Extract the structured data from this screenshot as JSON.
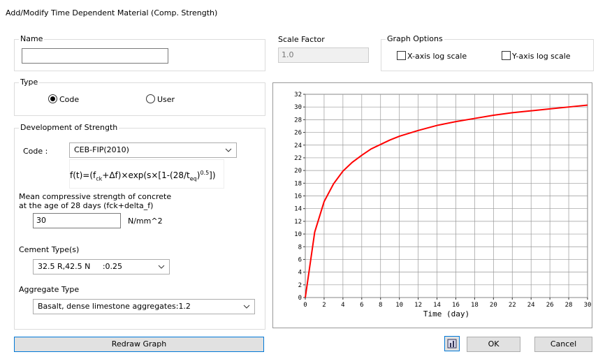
{
  "window": {
    "title": "Add/Modify Time Dependent Material (Comp. Strength)"
  },
  "name_group": {
    "label": "Name"
  },
  "scale_factor": {
    "label": "Scale Factor",
    "value": "1.0"
  },
  "graph_options": {
    "label": "Graph Options",
    "x_log": "X-axis log scale",
    "y_log": "Y-axis log scale"
  },
  "type_group": {
    "label": "Type",
    "options": [
      "Code",
      "User"
    ],
    "selected": 0
  },
  "development": {
    "label": "Development of Strength",
    "code_label": "Code :",
    "code_value": "CEB-FIP(2010)",
    "formula": [
      "f(t)=(f",
      "ck",
      "+Δf)×exp(s×[1-(28/t",
      "eq",
      ")",
      "0.5",
      "])"
    ],
    "mean_label_1": "Mean compressive strength of concrete",
    "mean_label_2": "at the age of 28 days (fck+delta_f)",
    "mean_value": "30",
    "mean_unit": "N/mm^2",
    "cement_label": "Cement Type(s)",
    "cement_value": "32.5 R,42.5 N     :0.25",
    "aggregate_label": "Aggregate Type",
    "aggregate_value": "Basalt, dense limestone aggregates:1.2"
  },
  "buttons": {
    "redraw": "Redraw Graph",
    "ok": "OK",
    "cancel": "Cancel"
  },
  "graph": {
    "type": "line",
    "x_label": "Time (day)",
    "color": "#ff0000",
    "grid": true,
    "x": [
      0,
      1,
      2,
      3,
      4,
      5,
      6,
      7,
      8,
      9,
      10,
      12,
      14,
      16,
      18,
      20,
      22,
      24,
      26,
      28,
      30
    ],
    "values": [
      0,
      10.3,
      15.1,
      17.9,
      19.9,
      21.3,
      22.4,
      23.4,
      24.1,
      24.8,
      25.4,
      26.3,
      27.1,
      27.7,
      28.2,
      28.7,
      29.1,
      29.4,
      29.7,
      30,
      30.3
    ],
    "xlim": [
      0,
      30
    ],
    "ylim": [
      0,
      32
    ],
    "xticks": [
      0,
      2,
      4,
      6,
      8,
      10,
      12,
      14,
      16,
      18,
      20,
      22,
      24,
      26,
      28,
      30
    ],
    "yticks": [
      0,
      2,
      4,
      6,
      8,
      10,
      12,
      14,
      16,
      18,
      20,
      22,
      24,
      26,
      28,
      30,
      32
    ]
  }
}
